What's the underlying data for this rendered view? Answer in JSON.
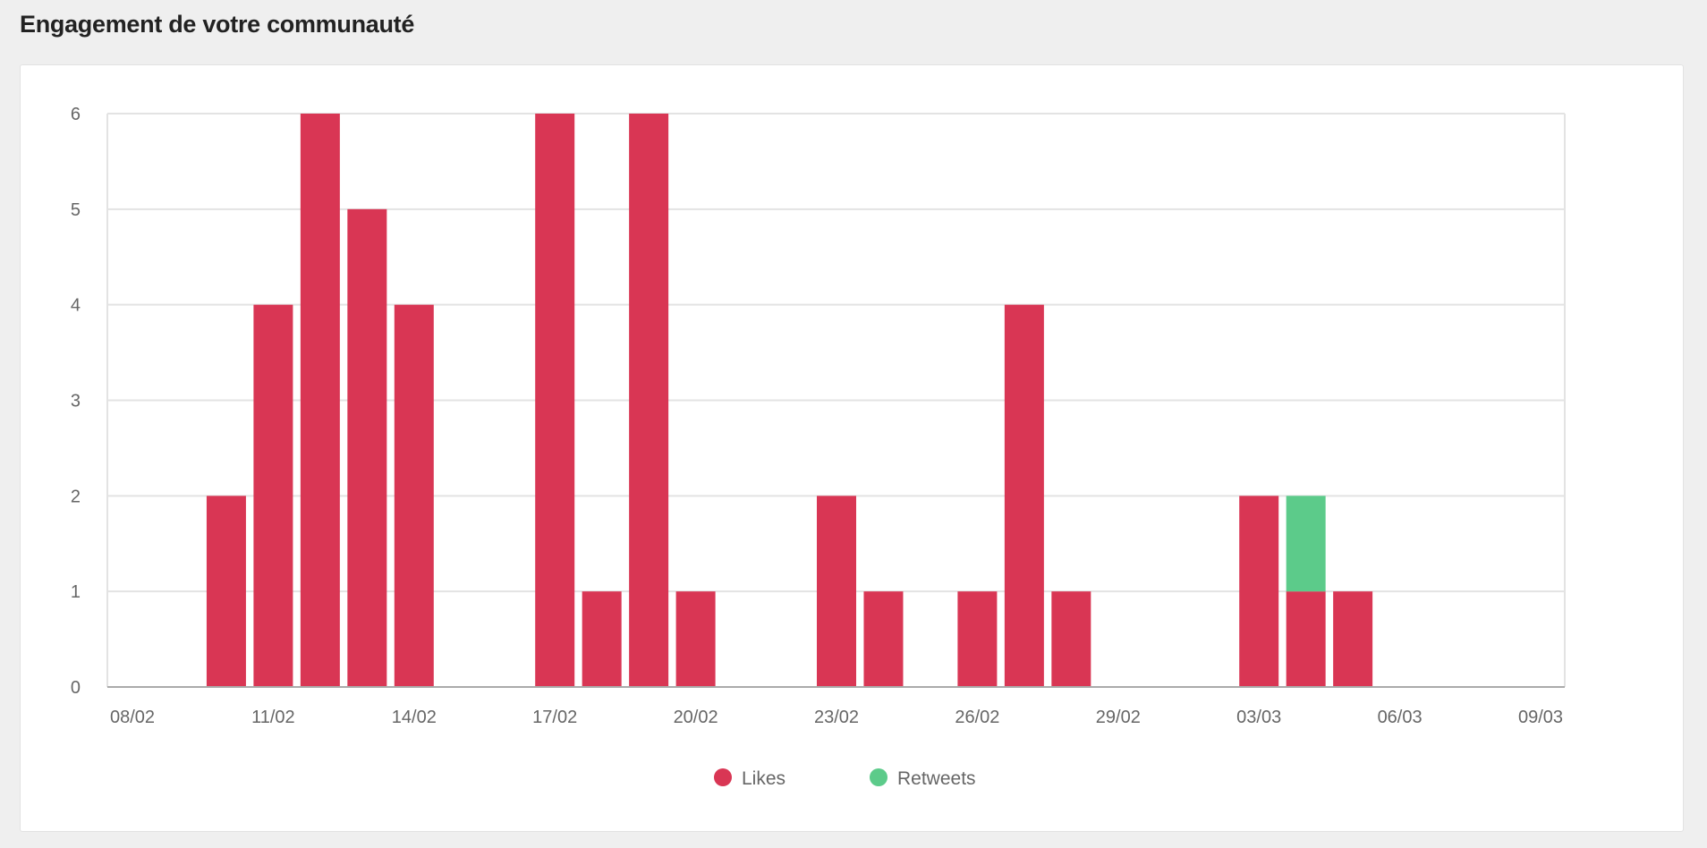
{
  "page_title": "Engagement de votre communauté",
  "chart_data": {
    "type": "bar",
    "stacked": true,
    "title": "Engagement de votre communauté",
    "xlabel": "",
    "ylabel": "",
    "ylim": [
      0,
      6
    ],
    "yticks": [
      "0",
      "1",
      "2",
      "3",
      "4",
      "5",
      "6"
    ],
    "xtick_labels": [
      "08/02",
      "11/02",
      "14/02",
      "17/02",
      "20/02",
      "23/02",
      "26/02",
      "29/02",
      "03/03",
      "06/03",
      "09/03"
    ],
    "categories": [
      "08/02",
      "09/02",
      "10/02",
      "11/02",
      "12/02",
      "13/02",
      "14/02",
      "15/02",
      "16/02",
      "17/02",
      "18/02",
      "19/02",
      "20/02",
      "21/02",
      "22/02",
      "23/02",
      "24/02",
      "25/02",
      "26/02",
      "27/02",
      "28/02",
      "29/02",
      "01/03",
      "02/03",
      "03/03",
      "04/03",
      "05/03",
      "06/03",
      "07/03",
      "08/03",
      "09/03"
    ],
    "series": [
      {
        "name": "Likes",
        "color": "#d93654",
        "values": [
          0,
          0,
          2,
          4,
          6,
          5,
          4,
          0,
          0,
          6,
          1,
          6,
          1,
          0,
          0,
          2,
          1,
          0,
          1,
          4,
          1,
          0,
          0,
          0,
          2,
          1,
          1,
          0,
          0,
          0,
          0
        ]
      },
      {
        "name": "Retweets",
        "color": "#5ccb8a",
        "values": [
          0,
          0,
          0,
          0,
          0,
          0,
          0,
          0,
          0,
          0,
          0,
          0,
          0,
          0,
          0,
          0,
          0,
          0,
          0,
          0,
          0,
          0,
          0,
          0,
          0,
          1,
          0,
          0,
          0,
          0,
          0
        ]
      }
    ],
    "grid": true,
    "legend_position": "bottom"
  }
}
